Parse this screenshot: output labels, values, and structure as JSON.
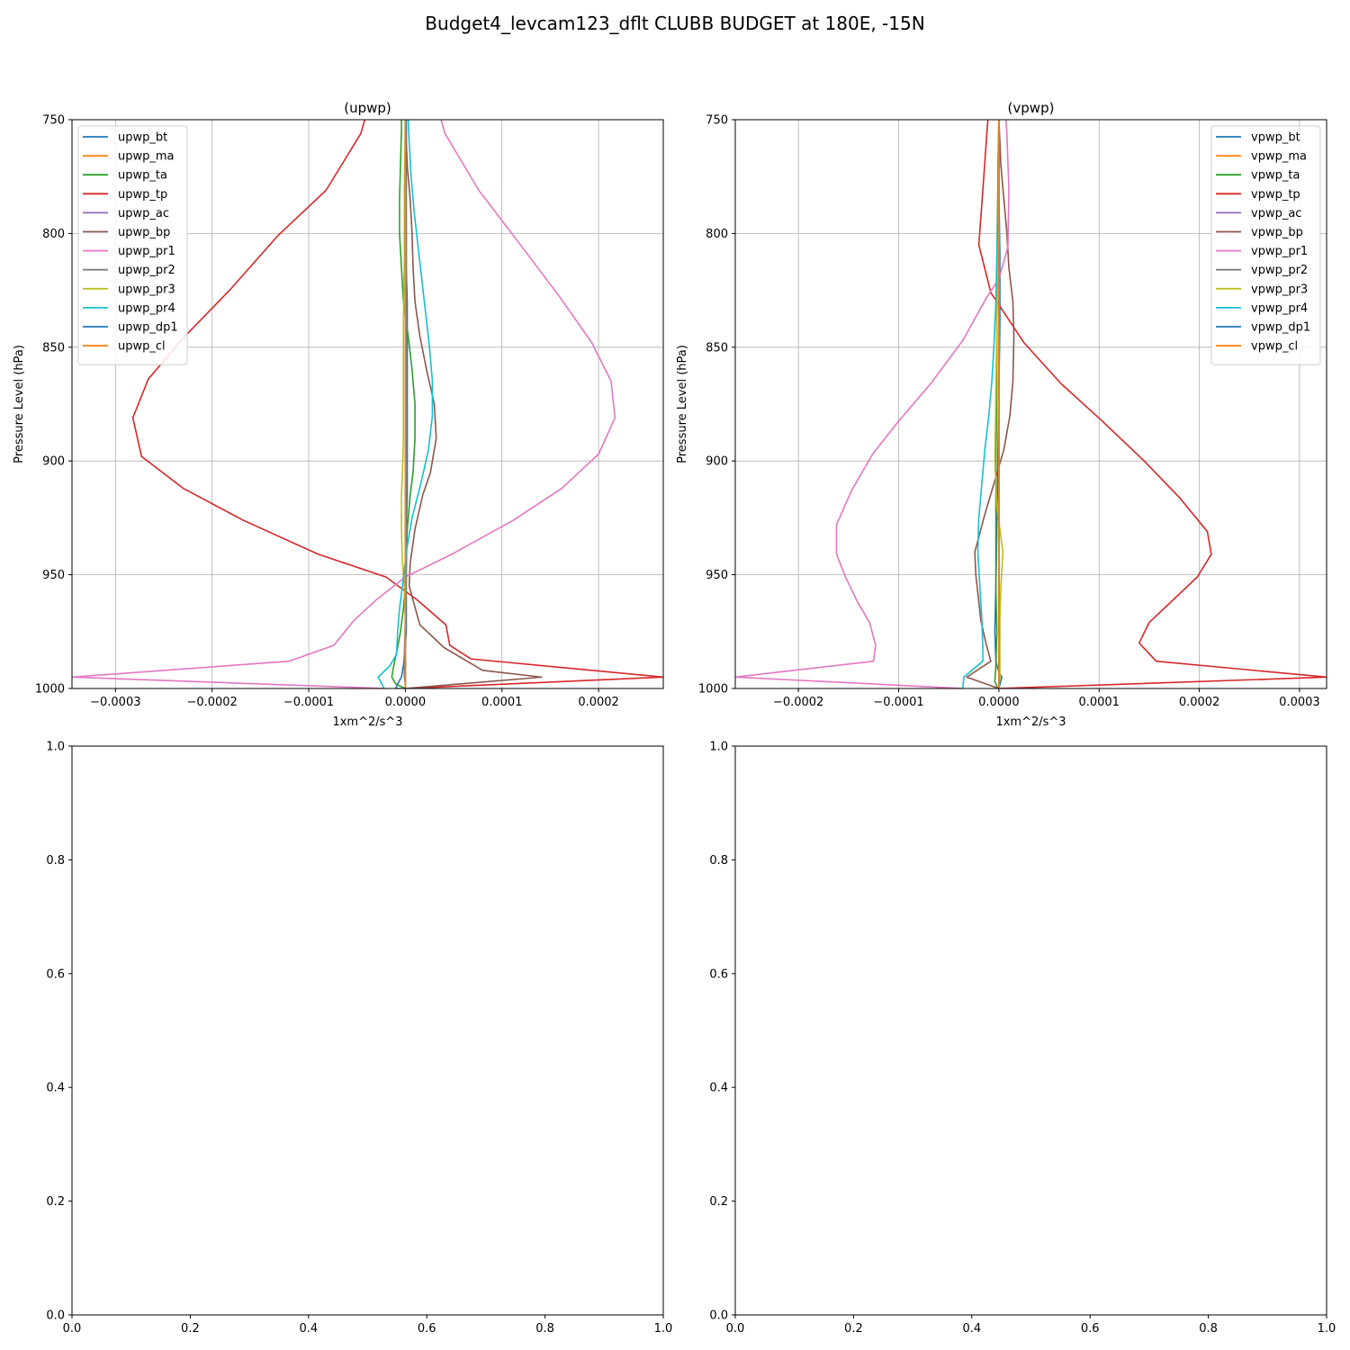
{
  "figure": {
    "title": "Budget4_levcam123_dflt CLUBB BUDGET at 180E, -15N"
  },
  "palette": [
    "#1f77b4",
    "#ff7f0e",
    "#2ca02c",
    "#d62728",
    "#9467bd",
    "#8c564b",
    "#e377c2",
    "#7f7f7f",
    "#bcbd22",
    "#17becf",
    "#1f77b4",
    "#ff7f0e"
  ],
  "chart_data": [
    {
      "type": "line",
      "title": "(upwp)",
      "xlabel": "1xm^2/s^3",
      "ylabel": "Pressure Level (hPa)",
      "xlim": [
        -0.000345,
        0.000267
      ],
      "ylim": [
        1000,
        750
      ],
      "x_ticks": [
        -0.0003,
        -0.0002,
        -0.0001,
        0.0,
        0.0001,
        0.0002
      ],
      "x_tick_labels": [
        "−0.0003",
        "−0.0002",
        "−0.0001",
        "0.0000",
        "0.0001",
        "0.0002"
      ],
      "y_ticks": [
        750,
        800,
        850,
        900,
        950,
        1000
      ],
      "grid": true,
      "legend_position": "upper-left",
      "series": [
        {
          "name": "upwp_bt",
          "x": [
            1e-06,
            1e-06,
            1e-06,
            1e-06,
            1e-06,
            1e-06,
            2e-06,
            2e-06,
            2e-06,
            2e-06,
            2e-06,
            2e-06,
            2e-06,
            1e-06,
            1e-06,
            1e-06,
            1e-06,
            1e-06,
            1e-06,
            1e-06,
            0.0,
            -2e-06,
            -4e-06,
            -8e-06,
            -1e-05,
            0.0
          ],
          "y": [
            750,
            755,
            770,
            785,
            800,
            815,
            830,
            845,
            860,
            875,
            890,
            905,
            915,
            930,
            945,
            955,
            960,
            965,
            970,
            975,
            982,
            990,
            995,
            998,
            1000,
            1000
          ]
        },
        {
          "name": "upwp_ma",
          "x": [
            0.0,
            0.0,
            0.0,
            0.0,
            0.0,
            0.0,
            0.0,
            0.0,
            0.0,
            0.0,
            0.0,
            0.0,
            0.0
          ],
          "y": [
            750,
            780,
            800,
            830,
            860,
            890,
            920,
            950,
            970,
            985,
            995,
            1000,
            1000
          ]
        },
        {
          "name": "upwp_ta",
          "x": [
            -4e-06,
            -4e-06,
            -5e-06,
            -6e-06,
            -6e-06,
            -4e-06,
            -2e-06,
            3e-06,
            7e-06,
            1e-05,
            1e-05,
            8e-06,
            5e-06,
            2e-06,
            1e-06,
            0.0,
            -2e-06,
            -5e-06,
            -8e-06,
            -1.2e-05,
            -1.4e-05,
            -1e-05,
            0.0
          ],
          "y": [
            750,
            755,
            770,
            785,
            800,
            815,
            830,
            845,
            860,
            875,
            890,
            905,
            915,
            930,
            945,
            955,
            965,
            975,
            982,
            990,
            995,
            998,
            1000
          ]
        },
        {
          "name": "upwp_tp",
          "x": [
            -4.2e-05,
            -4.6e-05,
            -8.2e-05,
            -0.000132,
            -0.000182,
            -0.00023,
            -0.000266,
            -0.000282,
            -0.000273,
            -0.00023,
            -0.000168,
            -9e-05,
            -2e-05,
            1.2e-05,
            4.2e-05,
            4.6e-05,
            6.8e-05,
            0.000267,
            0.0
          ],
          "y": [
            750,
            756,
            781,
            801,
            825,
            846,
            864,
            881,
            898,
            912,
            926,
            941,
            951,
            961,
            972,
            981,
            987,
            995,
            1000
          ]
        },
        {
          "name": "upwp_ac",
          "x": [
            0.0,
            0.0,
            0.0,
            0.0,
            0.0
          ],
          "y": [
            750,
            850,
            950,
            990,
            1000
          ]
        },
        {
          "name": "upwp_bp",
          "x": [
            0.0,
            2e-06,
            5e-06,
            7e-06,
            8e-06,
            1e-05,
            1.5e-05,
            2.2e-05,
            3e-05,
            3.2e-05,
            2.6e-05,
            1.8e-05,
            1e-05,
            5e-06,
            4e-06,
            1.5e-05,
            4e-05,
            8e-05,
            0.000141,
            0.0
          ],
          "y": [
            750,
            770,
            785,
            800,
            815,
            830,
            845,
            860,
            875,
            890,
            905,
            915,
            930,
            945,
            955,
            972,
            982,
            992,
            995,
            1000
          ]
        },
        {
          "name": "upwp_pr1",
          "x": [
            3.7e-05,
            4.1e-05,
            7.6e-05,
            0.000112,
            0.00016,
            0.000193,
            0.000213,
            0.000217,
            0.0002,
            0.000162,
            0.000112,
            4.8e-05,
            0.0,
            -3e-05,
            -5.3e-05,
            -7.4e-05,
            -0.00012,
            -0.000345,
            -2e-05
          ],
          "y": [
            750,
            756,
            781,
            801,
            828,
            848,
            865,
            881,
            897,
            912,
            926,
            941,
            951,
            961,
            970,
            981,
            988,
            995,
            1000
          ]
        },
        {
          "name": "upwp_pr2",
          "x": [
            0.0,
            1e-06,
            1e-06,
            1e-06,
            1e-06,
            1e-06,
            1e-06,
            0.0,
            -1e-06,
            -1e-06,
            0.0,
            0.0
          ],
          "y": [
            750,
            800,
            850,
            880,
            900,
            930,
            950,
            970,
            985,
            995,
            998,
            1000
          ]
        },
        {
          "name": "upwp_pr3",
          "x": [
            0.0,
            -1e-06,
            -1e-06,
            -2e-06,
            -2e-06,
            -2e-06,
            -3e-06,
            -4e-06,
            -4e-06,
            -3e-06,
            -1e-06,
            0.0,
            0.0,
            0.0,
            0.0
          ],
          "y": [
            750,
            780,
            810,
            840,
            870,
            890,
            905,
            915,
            930,
            945,
            955,
            970,
            985,
            995,
            1000
          ]
        },
        {
          "name": "upwp_pr4",
          "x": [
            3e-06,
            4e-06,
            6e-06,
            9e-06,
            1.3e-05,
            1.7e-05,
            2.1e-05,
            2.5e-05,
            2.8e-05,
            2.8e-05,
            2.4e-05,
            1.6e-05,
            7e-06,
            1e-06,
            -3e-06,
            -6e-06,
            -8e-06,
            -9e-06,
            -1.6e-05,
            -2.8e-05,
            -2.2e-05
          ],
          "y": [
            750,
            760,
            775,
            790,
            805,
            820,
            835,
            850,
            865,
            880,
            895,
            910,
            925,
            940,
            955,
            965,
            975,
            985,
            990,
            995,
            1000
          ]
        },
        {
          "name": "upwp_dp1",
          "x": [
            0.0,
            0.0,
            0.0
          ],
          "y": [
            750,
            900,
            1000
          ]
        },
        {
          "name": "upwp_cl",
          "x": [
            0.0,
            0.0,
            0.0
          ],
          "y": [
            750,
            900,
            1000
          ]
        }
      ]
    },
    {
      "type": "line",
      "title": "(vpwp)",
      "xlabel": "1xm^2/s^3",
      "ylabel": "Pressure Level (hPa)",
      "xlim": [
        -0.000263,
        0.000327
      ],
      "ylim": [
        1000,
        750
      ],
      "x_ticks": [
        -0.0002,
        -0.0001,
        0.0,
        0.0001,
        0.0002,
        0.0003
      ],
      "x_tick_labels": [
        "−0.0002",
        "−0.0001",
        "0.0000",
        "0.0001",
        "0.0002",
        "0.0003"
      ],
      "y_ticks": [
        750,
        800,
        850,
        900,
        950,
        1000
      ],
      "grid": true,
      "legend_position": "upper-right",
      "series": [
        {
          "name": "vpwp_bt",
          "x": [
            0.0,
            0.0,
            1e-06,
            1e-06,
            0.0,
            -1e-06,
            -2e-06,
            -3e-06,
            -4e-06,
            -3e-06,
            0.0,
            3e-06,
            0.0
          ],
          "y": [
            750,
            780,
            810,
            840,
            870,
            900,
            930,
            955,
            975,
            988,
            993,
            995,
            1000
          ]
        },
        {
          "name": "vpwp_ma",
          "x": [
            0.0,
            0.0,
            0.0
          ],
          "y": [
            750,
            900,
            1000
          ]
        },
        {
          "name": "vpwp_ta",
          "x": [
            0.0,
            -1e-06,
            -2e-06,
            -2e-06,
            -2e-06,
            -3e-06,
            -3e-06,
            -3e-06,
            -2e-06,
            -3e-06,
            -4e-06,
            -1e-06
          ],
          "y": [
            750,
            780,
            810,
            840,
            870,
            900,
            930,
            955,
            975,
            990,
            997,
            1000
          ]
        },
        {
          "name": "vpwp_tp",
          "x": [
            -1.1e-05,
            -1.2e-05,
            -1.6e-05,
            -2e-05,
            -8e-06,
            2.5e-05,
            6.2e-05,
            0.000102,
            0.000145,
            0.00018,
            0.000208,
            0.000212,
            0.000198,
            0.00015,
            0.00014,
            0.000157,
            0.000327,
            0.0
          ],
          "y": [
            750,
            756,
            781,
            805,
            826,
            848,
            866,
            882,
            900,
            916,
            931,
            941,
            951,
            971,
            980,
            988,
            995,
            1000
          ]
        },
        {
          "name": "vpwp_ac",
          "x": [
            0.0,
            0.0,
            0.0
          ],
          "y": [
            750,
            900,
            1000
          ]
        },
        {
          "name": "vpwp_bp",
          "x": [
            0.0,
            2e-06,
            5e-06,
            8e-06,
            1e-05,
            1.4e-05,
            1.5e-05,
            1.4e-05,
            1.1e-05,
            5e-06,
            -5e-06,
            -1.5e-05,
            -2.4e-05,
            -2.3e-05,
            -1.8e-05,
            -1.3e-05,
            -8e-06,
            -3.2e-05,
            0.0
          ],
          "y": [
            750,
            770,
            785,
            800,
            815,
            830,
            845,
            865,
            880,
            895,
            910,
            925,
            940,
            950,
            970,
            980,
            988,
            995,
            1000
          ]
        },
        {
          "name": "vpwp_pr1",
          "x": [
            7e-06,
            8e-06,
            1e-05,
            9e-06,
            0.0,
            -1.2e-05,
            -3.6e-05,
            -6.8e-05,
            -0.000101,
            -0.000126,
            -0.000147,
            -0.000162,
            -0.000162,
            -0.000153,
            -0.000141,
            -0.000129,
            -0.000123,
            -0.000125,
            -0.000263,
            -3.5e-05
          ],
          "y": [
            750,
            756,
            781,
            806,
            820,
            828,
            847,
            866,
            883,
            897,
            913,
            928,
            941,
            951,
            962,
            971,
            981,
            988,
            995,
            1000
          ]
        },
        {
          "name": "vpwp_pr2",
          "x": [
            0.0,
            0.0,
            0.0
          ],
          "y": [
            750,
            900,
            1000
          ]
        },
        {
          "name": "vpwp_pr3",
          "x": [
            0.0,
            -1e-06,
            -1e-06,
            -2e-06,
            -3e-06,
            -4e-06,
            -2e-06,
            1e-06,
            4e-06,
            2e-06,
            1e-06,
            1e-06,
            1e-06,
            0.0
          ],
          "y": [
            750,
            780,
            810,
            840,
            870,
            900,
            920,
            930,
            940,
            955,
            970,
            985,
            995,
            1000
          ]
        },
        {
          "name": "vpwp_pr4",
          "x": [
            0.0,
            -1e-06,
            -1e-06,
            -2e-06,
            -3e-06,
            -5e-06,
            -7e-06,
            -1e-05,
            -1.4e-05,
            -1.7e-05,
            -2e-05,
            -2.1e-05,
            -1.9e-05,
            -1.7e-05,
            -1.6e-05,
            -1.6e-05,
            -3.5e-05,
            -3.6e-05
          ],
          "y": [
            750,
            770,
            790,
            810,
            830,
            850,
            865,
            880,
            895,
            910,
            925,
            940,
            955,
            970,
            982,
            988,
            995,
            1000
          ]
        },
        {
          "name": "vpwp_dp1",
          "x": [
            0.0,
            0.0,
            0.0
          ],
          "y": [
            750,
            900,
            1000
          ]
        },
        {
          "name": "vpwp_cl",
          "x": [
            0.0,
            0.0,
            0.0
          ],
          "y": [
            750,
            900,
            1000
          ]
        }
      ]
    },
    {
      "type": "line",
      "title": "",
      "xlim": [
        0.0,
        1.0
      ],
      "ylim": [
        0.0,
        1.0
      ],
      "x_ticks": [
        0.0,
        0.2,
        0.4,
        0.6,
        0.8,
        1.0
      ],
      "x_tick_labels": [
        "0.0",
        "0.2",
        "0.4",
        "0.6",
        "0.8",
        "1.0"
      ],
      "y_ticks": [
        0.0,
        0.2,
        0.4,
        0.6,
        0.8,
        1.0
      ],
      "y_tick_labels": [
        "0.0",
        "0.2",
        "0.4",
        "0.6",
        "0.8",
        "1.0"
      ],
      "grid": false,
      "series": []
    },
    {
      "type": "line",
      "title": "",
      "xlim": [
        0.0,
        1.0
      ],
      "ylim": [
        0.0,
        1.0
      ],
      "x_ticks": [
        0.0,
        0.2,
        0.4,
        0.6,
        0.8,
        1.0
      ],
      "x_tick_labels": [
        "0.0",
        "0.2",
        "0.4",
        "0.6",
        "0.8",
        "1.0"
      ],
      "y_ticks": [
        0.0,
        0.2,
        0.4,
        0.6,
        0.8,
        1.0
      ],
      "y_tick_labels": [
        "0.0",
        "0.2",
        "0.4",
        "0.6",
        "0.8",
        "1.0"
      ],
      "grid": false,
      "series": []
    }
  ]
}
